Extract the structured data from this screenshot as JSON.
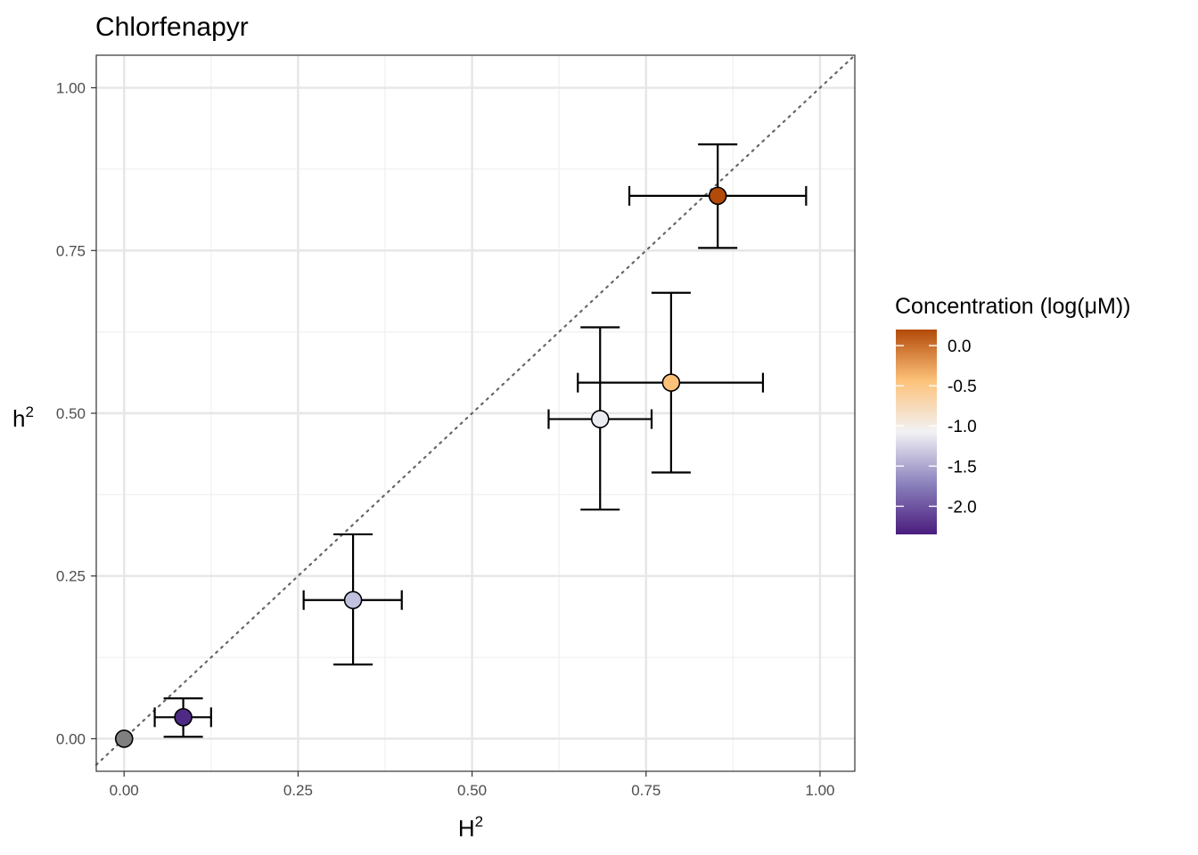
{
  "chart_data": {
    "type": "scatter",
    "title": "Chlorfenapyr",
    "xlabel": "H",
    "xlabel_sup": "2",
    "ylabel": "h",
    "ylabel_sup": "2",
    "xlim": [
      -0.04,
      1.05
    ],
    "ylim": [
      -0.05,
      1.05
    ],
    "x_ticks": [
      0.0,
      0.25,
      0.5,
      0.75,
      1.0
    ],
    "x_tick_labels": [
      "0.00",
      "0.25",
      "0.50",
      "0.75",
      "1.00"
    ],
    "y_ticks": [
      0.0,
      0.25,
      0.5,
      0.75,
      1.0
    ],
    "y_tick_labels": [
      "0.00",
      "0.25",
      "0.50",
      "0.75",
      "1.00"
    ],
    "grid": true,
    "reference_line": {
      "type": "identity",
      "style": "dotted",
      "color": "#666666"
    },
    "points": [
      {
        "x": 0.0,
        "y": 0.0,
        "concentration": null,
        "fill": "#7f7f7f"
      },
      {
        "x": 0.085,
        "y": 0.033,
        "x_err": [
          0.044,
          0.125
        ],
        "y_err": [
          0.003,
          0.062
        ],
        "concentration": -2.2,
        "fill": "#4e2a84"
      },
      {
        "x": 0.329,
        "y": 0.213,
        "x_err": [
          0.258,
          0.399
        ],
        "y_err": [
          0.114,
          0.314
        ],
        "concentration": -1.5,
        "fill": "#c3c1e0"
      },
      {
        "x": 0.684,
        "y": 0.491,
        "x_err": [
          0.61,
          0.758
        ],
        "y_err": [
          0.352,
          0.632
        ],
        "concentration": -1.1,
        "fill": "#ebebf2"
      },
      {
        "x": 0.786,
        "y": 0.547,
        "x_err": [
          0.652,
          0.918
        ],
        "y_err": [
          0.409,
          0.685
        ],
        "concentration": -0.6,
        "fill": "#fdc27a"
      },
      {
        "x": 0.853,
        "y": 0.834,
        "x_err": [
          0.726,
          0.98
        ],
        "y_err": [
          0.754,
          0.913
        ],
        "concentration": 0.1,
        "fill": "#b34a09"
      }
    ],
    "legend": {
      "title": "Concentration (log(μM))",
      "position": "right",
      "range": [
        -2.35,
        0.2
      ],
      "ticks": [
        0.0,
        -0.5,
        -1.0,
        -1.5,
        -2.0
      ],
      "tick_labels": [
        "0.0",
        "-0.5",
        "-1.0",
        "-1.5",
        "-2.0"
      ],
      "colors": [
        "#4a1c7e",
        "#8c83bd",
        "#f2f2f5",
        "#fdc27a",
        "#b34a09"
      ]
    }
  }
}
